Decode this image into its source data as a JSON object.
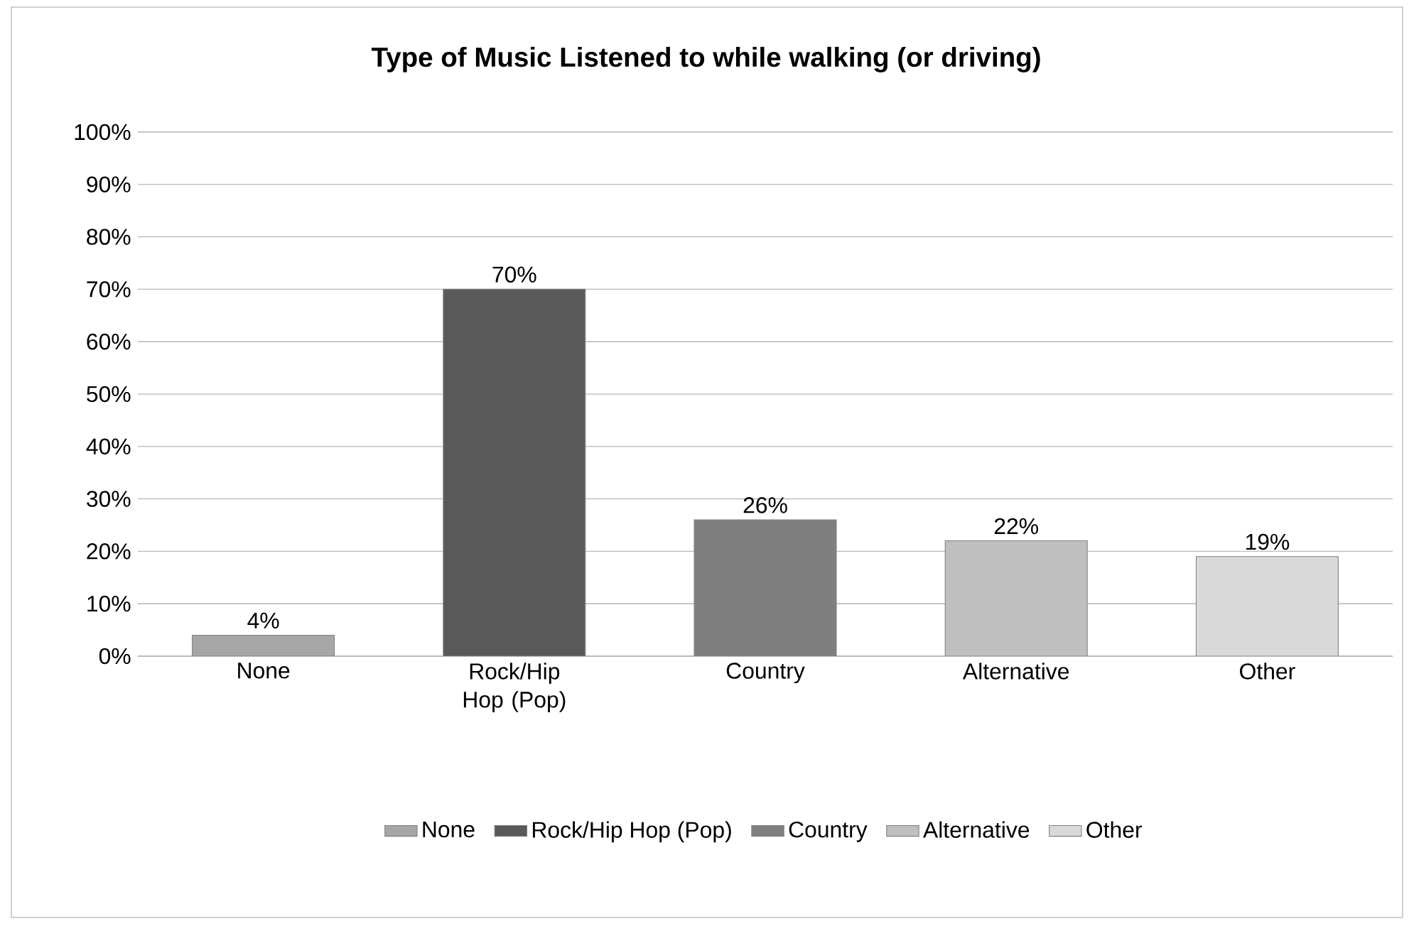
{
  "chart_data": {
    "type": "bar",
    "title": "Type of Music Listened to while walking (or driving)",
    "categories": [
      "None",
      "Rock/Hip Hop (Pop)",
      "Country",
      "Alternative",
      "Other"
    ],
    "series": [
      {
        "name": "None",
        "color": "#a6a6a6",
        "values": [
          4,
          null,
          null,
          null,
          null
        ],
        "value_labels": [
          "4%",
          null,
          null,
          null,
          null
        ]
      },
      {
        "name": "Rock/Hip Hop (Pop)",
        "color": "#595959",
        "values": [
          null,
          70,
          null,
          null,
          null
        ],
        "value_labels": [
          null,
          "70%",
          null,
          null,
          null
        ]
      },
      {
        "name": "Country",
        "color": "#7f7f7f",
        "values": [
          null,
          null,
          26,
          null,
          null
        ],
        "value_labels": [
          null,
          null,
          "26%",
          null,
          null
        ]
      },
      {
        "name": "Alternative",
        "color": "#bfbfbf",
        "values": [
          null,
          null,
          null,
          22,
          null
        ],
        "value_labels": [
          null,
          null,
          null,
          "22%",
          null
        ]
      },
      {
        "name": "Other",
        "color": "#d9d9d9",
        "values": [
          null,
          null,
          null,
          null,
          19
        ],
        "value_labels": [
          null,
          null,
          null,
          null,
          "19%"
        ]
      }
    ],
    "ylim": [
      0,
      100
    ],
    "yticks": [
      {
        "value": 0,
        "label": "0%"
      },
      {
        "value": 10,
        "label": "10%"
      },
      {
        "value": 20,
        "label": "20%"
      },
      {
        "value": 30,
        "label": "30%"
      },
      {
        "value": 40,
        "label": "40%"
      },
      {
        "value": 50,
        "label": "50%"
      },
      {
        "value": 60,
        "label": "60%"
      },
      {
        "value": 70,
        "label": "70%"
      },
      {
        "value": 80,
        "label": "80%"
      },
      {
        "value": 90,
        "label": "90%"
      },
      {
        "value": 100,
        "label": "100%"
      }
    ],
    "grid": "y",
    "legend": "bottom"
  }
}
